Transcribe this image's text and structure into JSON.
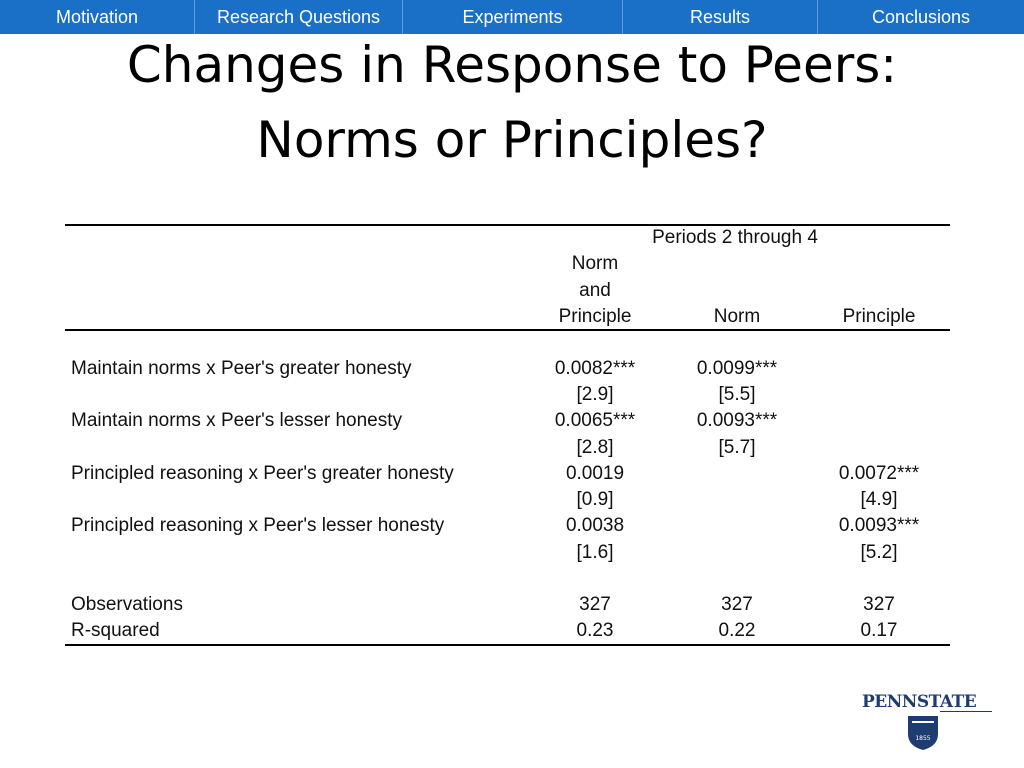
{
  "nav": {
    "items": [
      "Motivation",
      "Research Questions",
      "Experiments",
      "Results",
      "Conclusions"
    ]
  },
  "slide": {
    "title_line1": "Changes in Response to Peers:",
    "title_line2": "Norms or Principles?"
  },
  "table": {
    "group_header": "Periods 2 through 4",
    "col1_header": [
      "Norm",
      "and",
      "Principle"
    ],
    "col2_header": "Norm",
    "col3_header": "Principle",
    "rows": [
      {
        "label": "Maintain norms x Peer's greater honesty",
        "c1": "0.0082***",
        "c1_t": "[2.9]",
        "c2": "0.0099***",
        "c2_t": "[5.5]",
        "c3": "",
        "c3_t": ""
      },
      {
        "label": "Maintain norms x Peer's lesser honesty",
        "c1": "0.0065***",
        "c1_t": "[2.8]",
        "c2": "0.0093***",
        "c2_t": "[5.7]",
        "c3": "",
        "c3_t": ""
      },
      {
        "label": "Principled reasoning x Peer's greater honesty",
        "c1": "0.0019",
        "c1_t": "[0.9]",
        "c2": "",
        "c2_t": "",
        "c3": "0.0072***",
        "c3_t": "[4.9]"
      },
      {
        "label": "Principled reasoning x Peer's lesser honesty",
        "c1": "0.0038",
        "c1_t": "[1.6]",
        "c2": "",
        "c2_t": "",
        "c3": "0.0093***",
        "c3_t": "[5.2]"
      }
    ],
    "stats": [
      {
        "label": "Observations",
        "c1": "327",
        "c2": "327",
        "c3": "327"
      },
      {
        "label": "R-squared",
        "c1": "0.23",
        "c2": "0.22",
        "c3": "0.17"
      }
    ]
  },
  "logo": {
    "text": "PENNSTATE",
    "year": "1855",
    "color": "#1e3c72"
  }
}
